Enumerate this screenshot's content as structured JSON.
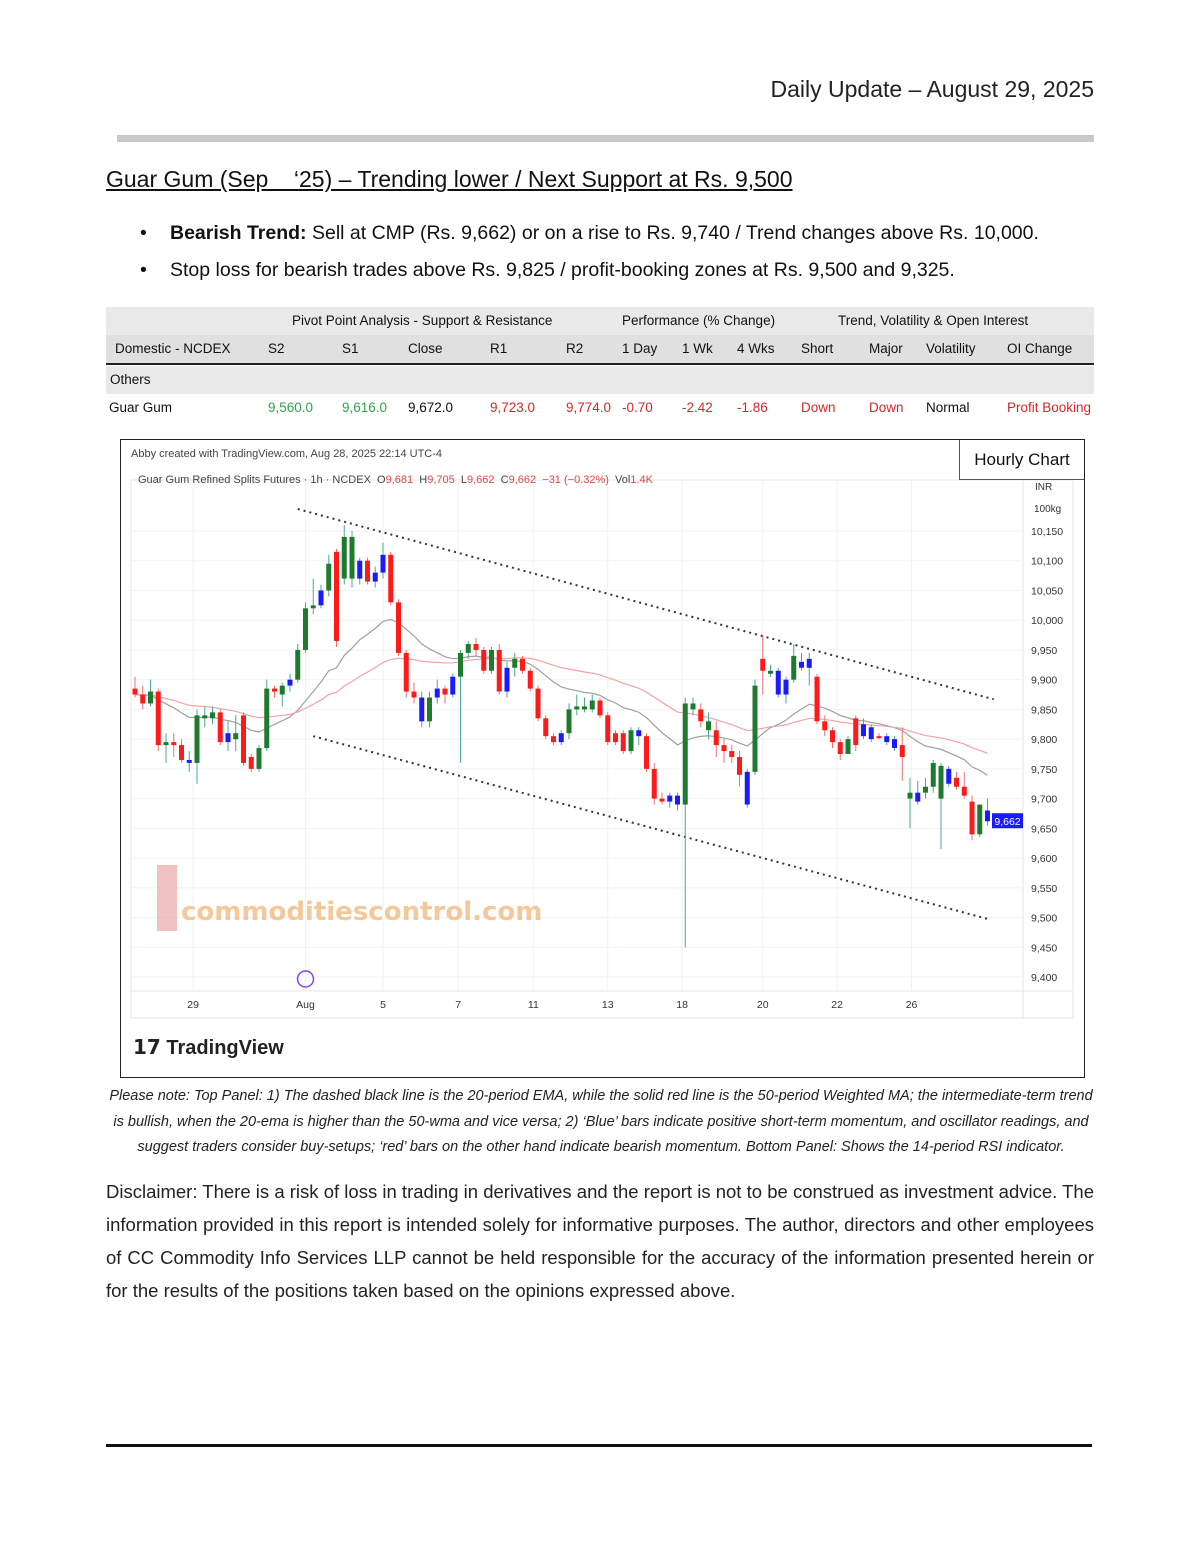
{
  "header": {
    "title": "Daily Update – August 29, 2025"
  },
  "report": {
    "title": "Guar Gum (Sep    ‘25) – Trending lower / Next Support at Rs. 9,500",
    "bullets": [
      {
        "bold": "Bearish Trend:",
        "text": " Sell at CMP (Rs. 9,662) or on a rise to Rs. 9,740 / Trend changes above Rs. 10,000."
      },
      {
        "bold": "",
        "text": "Stop loss for bearish trades above Rs. 9,825 / profit-booking zones at Rs. 9,500 and 9,325."
      }
    ]
  },
  "table": {
    "groups": [
      "Pivot Point Analysis - Support & Resistance",
      "Performance (% Change)",
      "Trend, Volatility & Open Interest"
    ],
    "headers": [
      "Domestic - NCDEX",
      "S2",
      "S1",
      "Close",
      "R1",
      "R2",
      "1 Day",
      "1 Wk",
      "4 Wks",
      "Short",
      "Major",
      "Volatility",
      "OI Change"
    ],
    "section": "Others",
    "row": [
      "Guar Gum",
      "9,560.0",
      "9,616.0",
      "9,672.0",
      "9,723.0",
      "9,774.0",
      "-0.70",
      "-2.42",
      "-1.86",
      "Down",
      "Down",
      "Normal",
      "Profit Booking"
    ]
  },
  "chart": {
    "label": "Hourly Chart",
    "credit": "Abby created with TradingView.com, Aug 28, 2025 22:14 UTC-4",
    "instrument": "Guar Gum Refined Splits Futures · 1h · NCDEX",
    "ohlc": {
      "o_label": "O",
      "o": "9,681",
      "h_label": "H",
      "h": "9,705",
      "l_label": "L",
      "l": "9,662",
      "c_label": "C",
      "c": "9,662",
      "change": "−31 (−0.32%)",
      "vol_label": "Vol",
      "vol": "1.4K"
    },
    "currency": "INR",
    "unit": "100kg",
    "watermark": "commoditiescontrol.com",
    "brand": "TradingView"
  },
  "chart_data": {
    "type": "candlestick",
    "ylim": [
      9375,
      10190
    ],
    "y_ticks": [
      "10,150",
      "10,100",
      "10,050",
      "10,000",
      "9,950",
      "9,900",
      "9,850",
      "9,800",
      "9,750",
      "9,700",
      "9,650",
      "9,600",
      "9,550",
      "9,500",
      "9,450",
      "9,400"
    ],
    "y_tick_values": [
      10150,
      10100,
      10050,
      10000,
      9950,
      9900,
      9850,
      9800,
      9750,
      9700,
      9650,
      9600,
      9550,
      9500,
      9450,
      9400
    ],
    "last_price": "9,662",
    "x_ticks": [
      {
        "label": "29",
        "at": 7.5
      },
      {
        "label": "Aug",
        "at": 22
      },
      {
        "label": "5",
        "at": 32
      },
      {
        "label": "7",
        "at": 41.7
      },
      {
        "label": "11",
        "at": 51.4
      },
      {
        "label": "13",
        "at": 61
      },
      {
        "label": "18",
        "at": 70.6
      },
      {
        "label": "20",
        "at": 81
      },
      {
        "label": "22",
        "at": 90.6
      },
      {
        "label": "26",
        "at": 100.2
      }
    ],
    "colors": {
      "up": "#1e7b2e",
      "down": "#ff1a1a",
      "blue": "#1a1aff",
      "ema20": "#a0a0a0",
      "wma50": "#f5a3a3",
      "last": "#1a1aff"
    },
    "indicators": [
      "20-period EMA",
      "50-period Weighted MA"
    ],
    "trendlines": [
      {
        "from": [
          21,
          10187
        ],
        "to": [
          110.8,
          9867
        ]
      },
      {
        "from": [
          23,
          9805
        ],
        "to": [
          110.2,
          9497
        ]
      }
    ],
    "candles": [
      [
        9885,
        9905,
        9870,
        9875,
        "r"
      ],
      [
        9875,
        9890,
        9850,
        9860,
        "r"
      ],
      [
        9860,
        9900,
        9855,
        9880,
        "g"
      ],
      [
        9880,
        9885,
        9780,
        9790,
        "r"
      ],
      [
        9790,
        9810,
        9760,
        9795,
        "g"
      ],
      [
        9795,
        9810,
        9770,
        9790,
        "r"
      ],
      [
        9790,
        9800,
        9760,
        9765,
        "r"
      ],
      [
        9765,
        9780,
        9745,
        9760,
        "b"
      ],
      [
        9760,
        9850,
        9725,
        9840,
        "g"
      ],
      [
        9840,
        9855,
        9820,
        9835,
        "g"
      ],
      [
        9835,
        9855,
        9825,
        9845,
        "g"
      ],
      [
        9845,
        9850,
        9790,
        9795,
        "r"
      ],
      [
        9795,
        9830,
        9780,
        9810,
        "b"
      ],
      [
        9810,
        9840,
        9780,
        9800,
        "g"
      ],
      [
        9840,
        9845,
        9755,
        9760,
        "r"
      ],
      [
        9770,
        9775,
        9745,
        9750,
        "r"
      ],
      [
        9750,
        9790,
        9745,
        9785,
        "g"
      ],
      [
        9785,
        9900,
        9780,
        9885,
        "g"
      ],
      [
        9885,
        9890,
        9870,
        9880,
        "r"
      ],
      [
        9875,
        9895,
        9855,
        9890,
        "g"
      ],
      [
        9890,
        9910,
        9880,
        9900,
        "b"
      ],
      [
        9900,
        9960,
        9895,
        9950,
        "g"
      ],
      [
        9950,
        10030,
        9945,
        10020,
        "g"
      ],
      [
        10020,
        10070,
        10010,
        10025,
        "g"
      ],
      [
        10025,
        10060,
        10020,
        10050,
        "b"
      ],
      [
        10050,
        10110,
        10040,
        10095,
        "g"
      ],
      [
        10115,
        10120,
        9955,
        9965,
        "r"
      ],
      [
        10070,
        10160,
        10060,
        10140,
        "g"
      ],
      [
        10140,
        10150,
        10055,
        10070,
        "g"
      ],
      [
        10070,
        10105,
        10060,
        10100,
        "b"
      ],
      [
        10100,
        10105,
        10060,
        10065,
        "r"
      ],
      [
        10065,
        10090,
        10055,
        10080,
        "b"
      ],
      [
        10080,
        10130,
        10070,
        10110,
        "b"
      ],
      [
        10110,
        10115,
        10025,
        10030,
        "r"
      ],
      [
        10030,
        10035,
        9940,
        9945,
        "r"
      ],
      [
        9945,
        9950,
        9870,
        9880,
        "r"
      ],
      [
        9880,
        9895,
        9860,
        9870,
        "r"
      ],
      [
        9870,
        9880,
        9820,
        9830,
        "b"
      ],
      [
        9830,
        9880,
        9820,
        9870,
        "g"
      ],
      [
        9870,
        9900,
        9860,
        9885,
        "b"
      ],
      [
        9885,
        9890,
        9860,
        9875,
        "r"
      ],
      [
        9875,
        9910,
        9870,
        9905,
        "b"
      ],
      [
        9905,
        9950,
        9760,
        9945,
        "g"
      ],
      [
        9945,
        9965,
        9935,
        9960,
        "g"
      ],
      [
        9960,
        9970,
        9940,
        9950,
        "r"
      ],
      [
        9950,
        9955,
        9910,
        9915,
        "r"
      ],
      [
        9915,
        9955,
        9910,
        9950,
        "g"
      ],
      [
        9950,
        9960,
        9875,
        9880,
        "r"
      ],
      [
        9880,
        9930,
        9870,
        9920,
        "b"
      ],
      [
        9920,
        9945,
        9905,
        9935,
        "g"
      ],
      [
        9935,
        9940,
        9910,
        9915,
        "r"
      ],
      [
        9915,
        9920,
        9880,
        9885,
        "r"
      ],
      [
        9885,
        9890,
        9830,
        9835,
        "r"
      ],
      [
        9835,
        9840,
        9800,
        9805,
        "r"
      ],
      [
        9805,
        9810,
        9790,
        9795,
        "r"
      ],
      [
        9795,
        9815,
        9790,
        9810,
        "b"
      ],
      [
        9810,
        9860,
        9800,
        9850,
        "g"
      ],
      [
        9850,
        9875,
        9840,
        9855,
        "g"
      ],
      [
        9855,
        9870,
        9845,
        9850,
        "g"
      ],
      [
        9850,
        9875,
        9845,
        9865,
        "g"
      ],
      [
        9865,
        9870,
        9835,
        9840,
        "r"
      ],
      [
        9840,
        9845,
        9790,
        9795,
        "r"
      ],
      [
        9795,
        9815,
        9790,
        9810,
        "r"
      ],
      [
        9810,
        9815,
        9775,
        9780,
        "r"
      ],
      [
        9780,
        9820,
        9775,
        9815,
        "g"
      ],
      [
        9815,
        9820,
        9790,
        9805,
        "b"
      ],
      [
        9805,
        9810,
        9745,
        9750,
        "r"
      ],
      [
        9750,
        9760,
        9690,
        9700,
        "r"
      ],
      [
        9700,
        9710,
        9690,
        9695,
        "r"
      ],
      [
        9695,
        9710,
        9685,
        9705,
        "b"
      ],
      [
        9705,
        9710,
        9680,
        9690,
        "b"
      ],
      [
        9690,
        9870,
        9450,
        9860,
        "g"
      ],
      [
        9860,
        9870,
        9840,
        9850,
        "g"
      ],
      [
        9850,
        9860,
        9820,
        9830,
        "r"
      ],
      [
        9830,
        9845,
        9800,
        9815,
        "g"
      ],
      [
        9815,
        9830,
        9770,
        9790,
        "r"
      ],
      [
        9790,
        9800,
        9760,
        9780,
        "r"
      ],
      [
        9780,
        9790,
        9760,
        9770,
        "r"
      ],
      [
        9770,
        9780,
        9720,
        9740,
        "r"
      ],
      [
        9690,
        9750,
        9685,
        9745,
        "b"
      ],
      [
        9745,
        9900,
        9740,
        9890,
        "g"
      ],
      [
        9935,
        9975,
        9875,
        9915,
        "r"
      ],
      [
        9910,
        9925,
        9905,
        9915,
        "g"
      ],
      [
        9915,
        9920,
        9870,
        9875,
        "b"
      ],
      [
        9875,
        9905,
        9860,
        9900,
        "b"
      ],
      [
        9900,
        9960,
        9895,
        9940,
        "g"
      ],
      [
        9920,
        9945,
        9915,
        9930,
        "b"
      ],
      [
        9920,
        9945,
        9890,
        9935,
        "b"
      ],
      [
        9905,
        9910,
        9825,
        9830,
        "r"
      ],
      [
        9830,
        9840,
        9805,
        9815,
        "r"
      ],
      [
        9815,
        9820,
        9785,
        9795,
        "r"
      ],
      [
        9795,
        9800,
        9765,
        9775,
        "r"
      ],
      [
        9775,
        9805,
        9775,
        9800,
        "g"
      ],
      [
        9835,
        9840,
        9780,
        9790,
        "r"
      ],
      [
        9805,
        9835,
        9800,
        9825,
        "b"
      ],
      [
        9820,
        9825,
        9795,
        9800,
        "b"
      ],
      [
        9805,
        9810,
        9800,
        9805,
        "r"
      ],
      [
        9805,
        9810,
        9790,
        9795,
        "b"
      ],
      [
        9800,
        9805,
        9780,
        9785,
        "b"
      ],
      [
        9790,
        9820,
        9730,
        9770,
        "r"
      ],
      [
        9700,
        9735,
        9650,
        9710,
        "g"
      ],
      [
        9695,
        9730,
        9690,
        9710,
        "b"
      ],
      [
        9710,
        9735,
        9700,
        9720,
        "g"
      ],
      [
        9720,
        9765,
        9710,
        9760,
        "g"
      ],
      [
        9700,
        9760,
        9615,
        9755,
        "g"
      ],
      [
        9750,
        9755,
        9720,
        9725,
        "b"
      ],
      [
        9735,
        9745,
        9715,
        9720,
        "r"
      ],
      [
        9720,
        9745,
        9700,
        9705,
        "r"
      ],
      [
        9695,
        9705,
        9630,
        9640,
        "r"
      ],
      [
        9640,
        9690,
        9635,
        9690,
        "g"
      ],
      [
        9680,
        9700,
        9655,
        9662,
        "b"
      ]
    ]
  },
  "note": "Please note: Top Panel: 1) The dashed black line is the 20-period EMA, while the solid red line is the 50-period Weighted MA; the intermediate-term trend is bullish, when the 20-ema is higher than the 50-wma and vice versa; 2)   ‘Blue’   bars indicate positive short-term momentum, and oscillator readings, and suggest traders consider buy-setups;   ‘red’   bars on the other hand indicate bearish momentum. Bottom Panel: Shows the 14-period RSI indicator.",
  "disclaimer": "Disclaimer: There is a risk of loss in trading in derivatives and the report is not to be construed as investment advice. The information provided in this report is intended solely for informative purposes. The author, directors and other employees of CC Commodity Info Services LLP cannot be held responsible for the accuracy of the information presented herein or for the results of the positions taken based on the opinions expressed above."
}
